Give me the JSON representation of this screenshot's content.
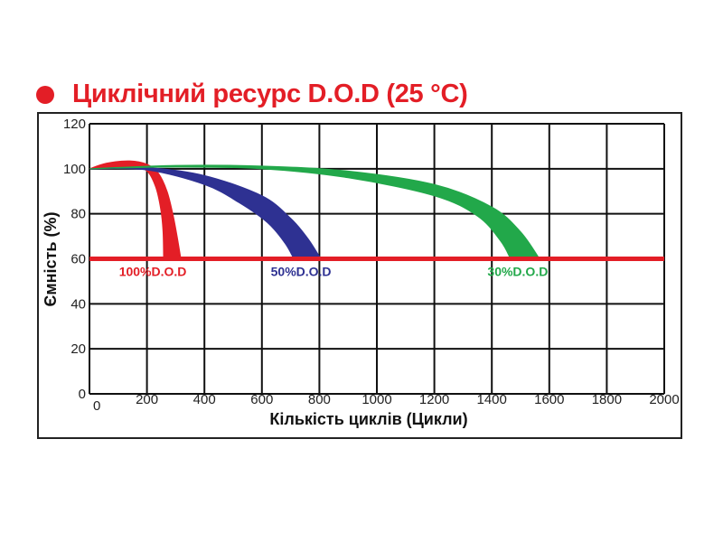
{
  "chart_data": {
    "type": "area",
    "title": "Циклічний ресурс D.O.D (25 °C)",
    "xlabel": "Кількість циклів (Цикли)",
    "ylabel": "Ємність (%)",
    "xlim": [
      0,
      2000
    ],
    "ylim": [
      0,
      120
    ],
    "xticks": [
      0,
      200,
      400,
      600,
      800,
      1000,
      1200,
      1400,
      1600,
      1800,
      2000
    ],
    "yticks": [
      0,
      20,
      40,
      60,
      80,
      100,
      120
    ],
    "grid": true,
    "reference_line": {
      "y": 60,
      "color": "#e31e26"
    },
    "series": [
      {
        "name": "100%D.O.D",
        "color": "#e31e26",
        "upper": [
          [
            0,
            100
          ],
          [
            60,
            102.5
          ],
          [
            140,
            103.5
          ],
          [
            200,
            102
          ],
          [
            240,
            98
          ],
          [
            270,
            90
          ],
          [
            290,
            80
          ],
          [
            305,
            70
          ],
          [
            318,
            60
          ]
        ],
        "lower": [
          [
            0,
            100
          ],
          [
            150,
            100.4
          ],
          [
            200,
            99
          ],
          [
            230,
            92
          ],
          [
            248,
            82
          ],
          [
            256,
            72
          ],
          [
            258,
            60
          ]
        ]
      },
      {
        "name": "50%D.O.D",
        "color": "#2e3192",
        "upper": [
          [
            0,
            100
          ],
          [
            200,
            100.5
          ],
          [
            400,
            97
          ],
          [
            600,
            88
          ],
          [
            700,
            78
          ],
          [
            760,
            69
          ],
          [
            805,
            60
          ]
        ],
        "lower": [
          [
            0,
            100
          ],
          [
            200,
            99.5
          ],
          [
            400,
            93
          ],
          [
            520,
            85
          ],
          [
            620,
            76
          ],
          [
            680,
            67
          ],
          [
            711,
            60
          ]
        ]
      },
      {
        "name": "30%D.O.D",
        "color": "#22a84a",
        "upper": [
          [
            0,
            100
          ],
          [
            300,
            101.5
          ],
          [
            600,
            101.2
          ],
          [
            900,
            99
          ],
          [
            1200,
            93
          ],
          [
            1400,
            83
          ],
          [
            1500,
            72
          ],
          [
            1566,
            60
          ]
        ],
        "lower": [
          [
            0,
            100
          ],
          [
            300,
            100.8
          ],
          [
            600,
            100
          ],
          [
            900,
            96
          ],
          [
            1200,
            88
          ],
          [
            1350,
            79
          ],
          [
            1430,
            68
          ],
          [
            1465,
            60
          ]
        ]
      }
    ]
  }
}
